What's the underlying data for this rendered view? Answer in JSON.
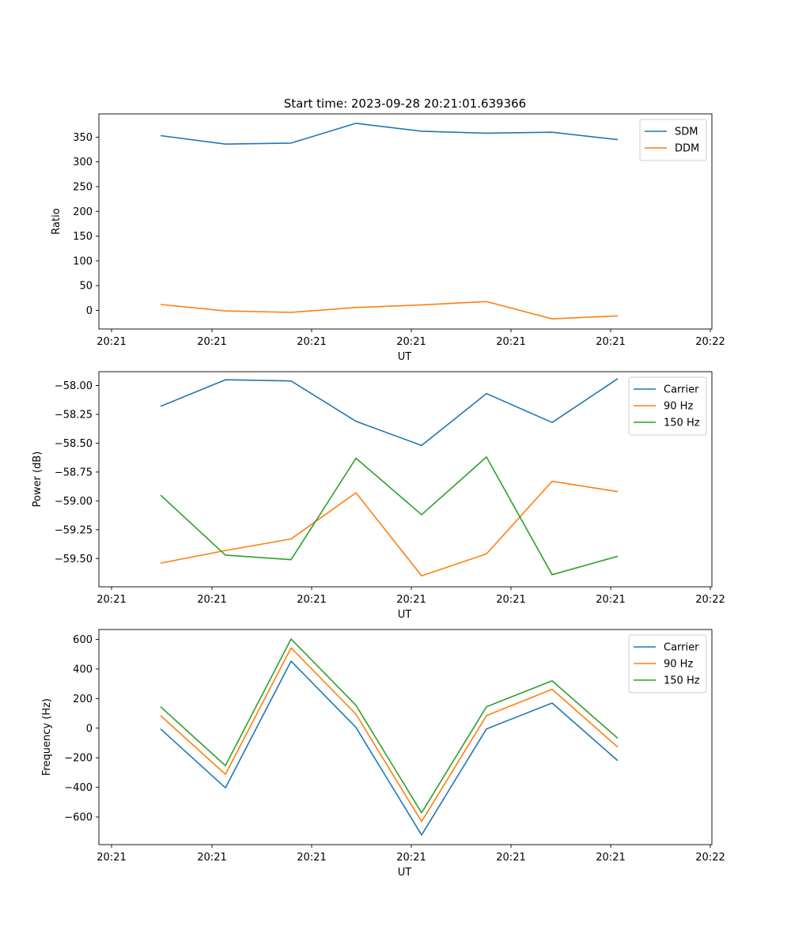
{
  "title": "Start time: 2023-09-28 20:21:01.639366",
  "colors": {
    "blue": "#1f77b4",
    "orange": "#ff7f0e",
    "green": "#2ca02c"
  },
  "chart_data": [
    {
      "type": "line",
      "xlabel": "UT",
      "ylabel": "Ratio",
      "x_tick_labels": [
        "20:21",
        "20:21",
        "20:21",
        "20:21",
        "20:21",
        "20:21",
        "20:22"
      ],
      "y_ticks": [
        0,
        50,
        100,
        150,
        200,
        250,
        300,
        350
      ],
      "y_tick_labels": [
        "0",
        "50",
        "100",
        "150",
        "200",
        "250",
        "300",
        "350"
      ],
      "ylim": [
        -37.5,
        397
      ],
      "legend_position": "upper-right",
      "series": [
        {
          "name": "SDM",
          "color": "#1f77b4",
          "values": [
            353,
            336,
            338,
            378,
            362,
            358,
            360,
            345
          ]
        },
        {
          "name": "DDM",
          "color": "#ff7f0e",
          "values": [
            12,
            -1,
            -4,
            6,
            11,
            18,
            -17,
            -11
          ]
        }
      ]
    },
    {
      "type": "line",
      "xlabel": "UT",
      "ylabel": "Power (dB)",
      "x_tick_labels": [
        "20:21",
        "20:21",
        "20:21",
        "20:21",
        "20:21",
        "20:21",
        "20:22"
      ],
      "y_ticks": [
        -59.5,
        -59.25,
        -59.0,
        -58.75,
        -58.5,
        -58.25,
        -58.0
      ],
      "y_tick_labels": [
        "−59.50",
        "−59.25",
        "−59.00",
        "−58.75",
        "−58.50",
        "−58.25",
        "−58.00"
      ],
      "ylim": [
        -59.745,
        -57.88
      ],
      "legend_position": "upper-right",
      "series": [
        {
          "name": "Carrier",
          "color": "#1f77b4",
          "values": [
            -58.18,
            -57.95,
            -57.96,
            -58.31,
            -58.52,
            -58.07,
            -58.32,
            -57.94
          ]
        },
        {
          "name": "90 Hz",
          "color": "#ff7f0e",
          "values": [
            -59.54,
            -59.43,
            -59.33,
            -58.93,
            -59.65,
            -59.46,
            -58.83,
            -58.92
          ]
        },
        {
          "name": "150 Hz",
          "color": "#2ca02c",
          "values": [
            -58.95,
            -59.47,
            -59.51,
            -58.63,
            -59.12,
            -58.62,
            -59.64,
            -59.48
          ]
        }
      ]
    },
    {
      "type": "line",
      "xlabel": "UT",
      "ylabel": "Frequency (Hz)",
      "x_tick_labels": [
        "20:21",
        "20:21",
        "20:21",
        "20:21",
        "20:21",
        "20:21",
        "20:22"
      ],
      "y_ticks": [
        -600,
        -400,
        -200,
        0,
        200,
        400,
        600
      ],
      "y_tick_labels": [
        "−600",
        "−400",
        "−200",
        "0",
        "200",
        "400",
        "600"
      ],
      "ylim": [
        -787,
        667
      ],
      "legend_position": "upper-right",
      "series": [
        {
          "name": "Carrier",
          "color": "#1f77b4",
          "values": [
            -5,
            -403,
            453,
            5,
            -722,
            -5,
            170,
            -220
          ]
        },
        {
          "name": "90 Hz",
          "color": "#ff7f0e",
          "values": [
            85,
            -312,
            543,
            95,
            -631,
            85,
            263,
            -128
          ]
        },
        {
          "name": "150 Hz",
          "color": "#2ca02c",
          "values": [
            145,
            -253,
            603,
            155,
            -572,
            145,
            320,
            -68
          ]
        }
      ]
    }
  ]
}
